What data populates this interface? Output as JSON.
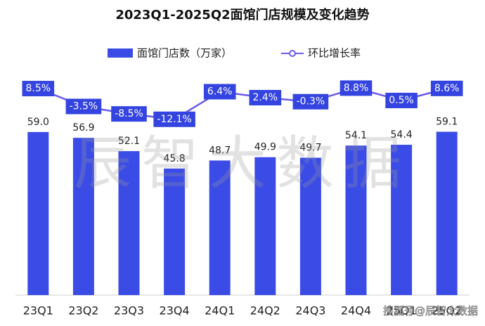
{
  "chart_data": {
    "type": "bar_line",
    "title": "2023Q1-2025Q2面馆门店规模及变化趋势",
    "watermark": "辰智大数据",
    "source": "搜狐号@辰智大数据",
    "categories": [
      "23Q1",
      "23Q2",
      "23Q3",
      "23Q4",
      "24Q1",
      "24Q2",
      "24Q3",
      "24Q4",
      "25Q1",
      "25Q2"
    ],
    "ylim": [
      0,
      75
    ],
    "y2lim": [
      -130,
      9
    ],
    "legend": "top",
    "series": [
      {
        "name": "面馆门店数（万家）",
        "type": "bar",
        "color": "#3b4ce6",
        "values": [
          59.0,
          56.9,
          52.1,
          45.8,
          48.7,
          49.9,
          49.7,
          54.1,
          54.4,
          59.1
        ],
        "value_labels": [
          "59.0",
          "56.9",
          "52.1",
          "45.8",
          "48.7",
          "49.9",
          "49.7",
          "54.1",
          "54.4",
          "59.1"
        ]
      },
      {
        "name": "环比增长率",
        "type": "line",
        "axis": "y2",
        "color": "#6a5ae8",
        "values": [
          8.5,
          -3.5,
          -8.5,
          -12.1,
          6.4,
          2.4,
          -0.3,
          8.8,
          0.5,
          8.6
        ],
        "value_labels": [
          "8.5%",
          "-3.5%",
          "-8.5%",
          "-12.1%",
          "6.4%",
          "2.4%",
          "-0.3%",
          "8.8%",
          "0.5%",
          "8.6%"
        ]
      }
    ]
  }
}
